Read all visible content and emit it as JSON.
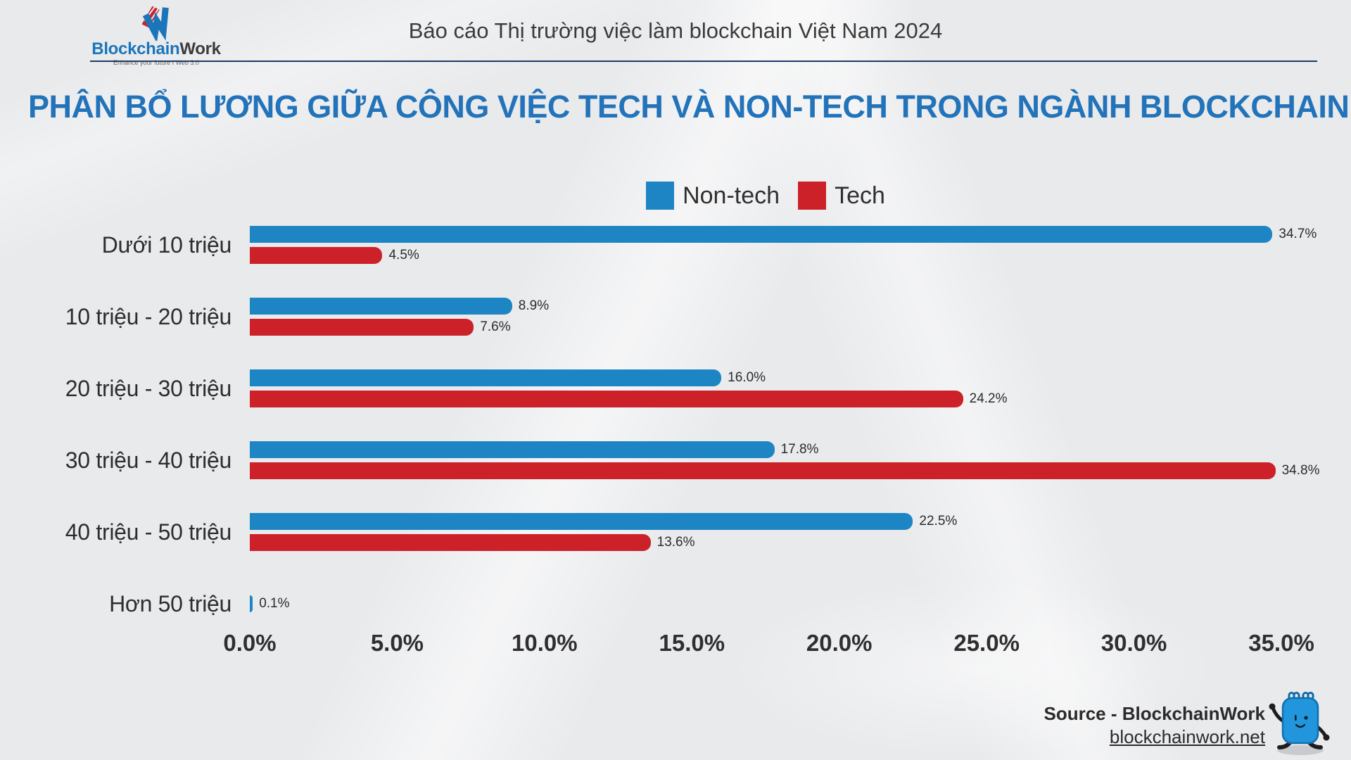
{
  "header": {
    "report_title": "Báo cáo Thị trường việc làm blockchain Việt Nam 2024",
    "logo_text_blue": "Blockchain",
    "logo_text_dark": "Work",
    "logo_tagline": "Enhance your future I Web 3.0"
  },
  "page_title": "PHÂN BỔ LƯƠNG GIỮA CÔNG VIỆC TECH VÀ NON-TECH TRONG NGÀNH BLOCKCHAIN",
  "legend": {
    "items": [
      {
        "label": "Non-tech",
        "color": "#1e85c4"
      },
      {
        "label": "Tech",
        "color": "#cd2129"
      }
    ]
  },
  "chart_data": {
    "type": "bar",
    "orientation": "horizontal",
    "title": "PHÂN BỔ LƯƠNG GIỮA CÔNG VIỆC TECH VÀ NON-TECH TRONG NGÀNH BLOCKCHAIN",
    "categories": [
      "Dưới 10 triệu",
      "10 triệu - 20 triệu",
      "20 triệu - 30 triệu",
      "30 triệu - 40 triệu",
      "40 triệu - 50 triệu",
      "Hơn 50 triệu"
    ],
    "series": [
      {
        "name": "Non-tech",
        "color": "#1e85c4",
        "values": [
          34.7,
          8.9,
          16.0,
          17.8,
          22.5,
          0.1
        ],
        "labels": [
          "34.7%",
          "8.9%",
          "16.0%",
          "17.8%",
          "22.5%",
          "0.1%"
        ]
      },
      {
        "name": "Tech",
        "color": "#cd2129",
        "values": [
          4.5,
          7.6,
          24.2,
          34.8,
          13.6,
          null
        ],
        "labels": [
          "4.5%",
          "7.6%",
          "24.2%",
          "34.8%",
          "13.6%",
          null
        ]
      }
    ],
    "xlim": [
      0,
      35
    ],
    "x_tick_values": [
      0,
      5,
      10,
      15,
      20,
      25,
      30,
      35
    ],
    "x_ticks": [
      "0.0%",
      "5.0%",
      "10.0%",
      "15.0%",
      "20.0%",
      "25.0%",
      "30.0%",
      "35.0%"
    ],
    "grid": false,
    "legend_position": "top-center",
    "value_labels": "outside-end"
  },
  "footer": {
    "source_label": "Source - BlockchainWork",
    "website": "blockchainwork.net"
  },
  "colors": {
    "accent_blue": "#1e85c4",
    "accent_red": "#cd2129",
    "title_blue": "#2273b9",
    "divider_navy": "#1f3b66",
    "background": "#e9eaec"
  }
}
